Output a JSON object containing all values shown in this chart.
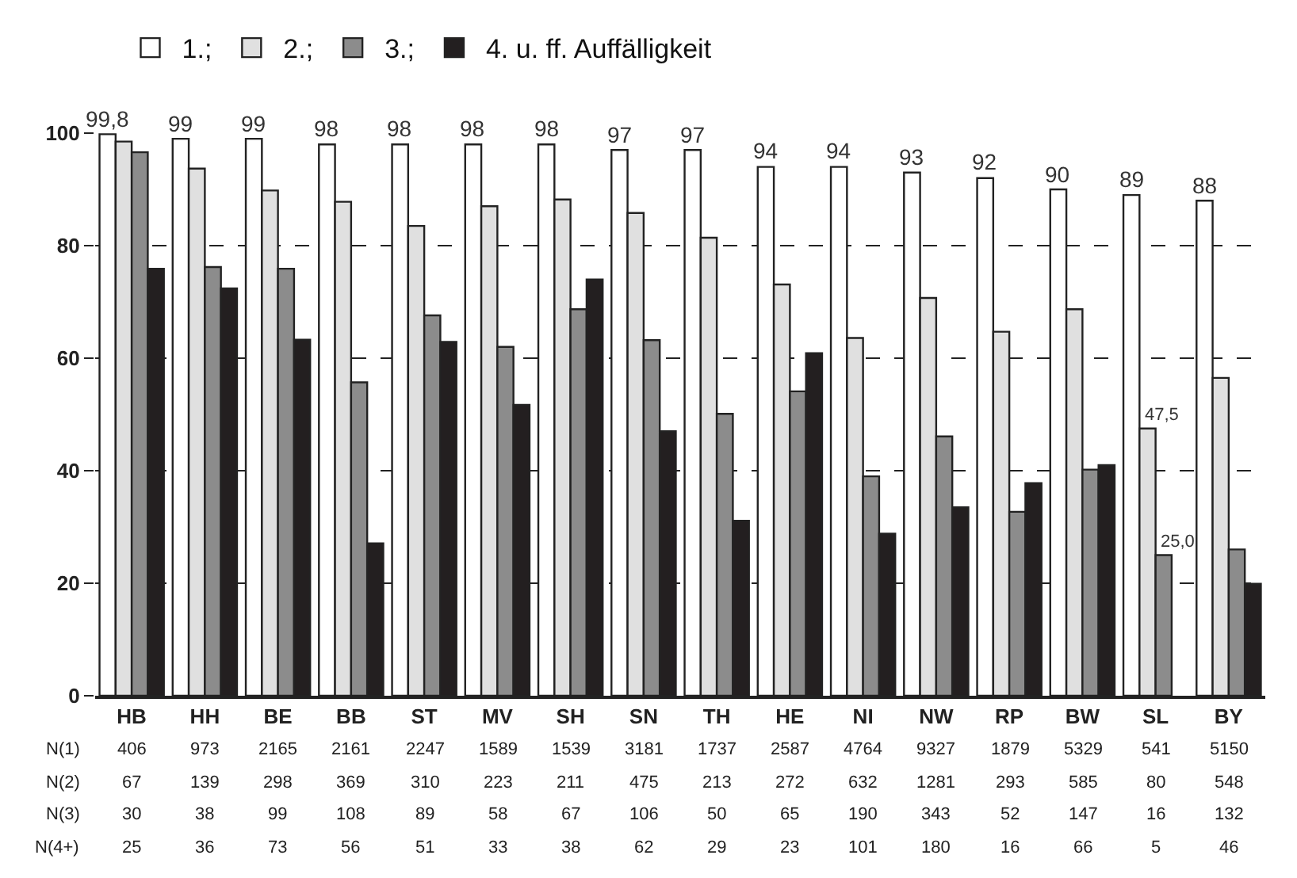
{
  "chart_data": {
    "type": "bar",
    "categories": [
      "HB",
      "HH",
      "BE",
      "BB",
      "ST",
      "MV",
      "SH",
      "SN",
      "TH",
      "HE",
      "NI",
      "NW",
      "RP",
      "BW",
      "SL",
      "BY"
    ],
    "series": [
      {
        "name": "1.;",
        "color": "#ffffff",
        "values": [
          99.8,
          99,
          99,
          98,
          98,
          98,
          98,
          97,
          97,
          94,
          94,
          93,
          92,
          90,
          89,
          88
        ],
        "value_labels": [
          "99,8",
          "99",
          "99",
          "98",
          "98",
          "98",
          "98",
          "97",
          "97",
          "94",
          "94",
          "93",
          "92",
          "90",
          "89",
          "88"
        ]
      },
      {
        "name": "2.;",
        "color": "#e0e0e0",
        "values": [
          98.5,
          93.7,
          89.8,
          87.8,
          83.5,
          87.0,
          88.2,
          85.8,
          81.4,
          73.1,
          63.6,
          70.7,
          64.7,
          68.7,
          47.5,
          56.5
        ],
        "value_labels": [
          null,
          null,
          null,
          null,
          null,
          null,
          null,
          null,
          null,
          null,
          null,
          null,
          null,
          null,
          "47,5",
          null
        ]
      },
      {
        "name": "3.;",
        "color": "#8c8c8c",
        "values": [
          96.6,
          76.2,
          75.9,
          55.7,
          67.6,
          62.0,
          68.7,
          63.2,
          50.1,
          54.1,
          39.0,
          46.1,
          32.7,
          40.2,
          25.0,
          26.0
        ],
        "value_labels": [
          null,
          null,
          null,
          null,
          null,
          null,
          null,
          null,
          null,
          null,
          null,
          null,
          null,
          null,
          "25,0",
          null
        ]
      },
      {
        "name": "4. u. ff. Auffälligkeit",
        "color": "#231f20",
        "values": [
          75.9,
          72.4,
          63.3,
          27.1,
          62.9,
          51.7,
          74.0,
          47.0,
          31.1,
          60.9,
          28.8,
          33.5,
          37.8,
          41.0,
          null,
          19.9
        ]
      }
    ],
    "ylim": [
      0,
      100
    ],
    "yticks": [
      0,
      20,
      40,
      60,
      80,
      100
    ],
    "grid": "y",
    "legend": "top",
    "annotations": [
      "N(1)",
      "406",
      "973",
      "2165",
      "2161",
      "2247",
      "1589",
      "1539",
      "3181",
      "1737",
      "2587",
      "4764",
      "9327",
      "1879",
      "5329",
      "541",
      "5150",
      "N(2)",
      "67",
      "139",
      "298",
      "369",
      "310",
      "223",
      "211",
      "475",
      "213",
      "272",
      "632",
      "1281",
      "293",
      "585",
      "80",
      "548",
      "N(3)",
      "30",
      "38",
      "99",
      "108",
      "89",
      "58",
      "67",
      "106",
      "50",
      "65",
      "190",
      "343",
      "52",
      "147",
      "16",
      "132",
      "N(4+)",
      "25",
      "36",
      "73",
      "56",
      "51",
      "33",
      "38",
      "62",
      "29",
      "23",
      "101",
      "180",
      "16",
      "66",
      "5",
      "46"
    ]
  }
}
